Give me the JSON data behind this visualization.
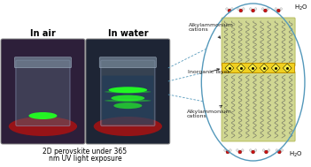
{
  "figsize": [
    3.51,
    1.89
  ],
  "dpi": 100,
  "label_air": "In air",
  "label_water": "In water",
  "caption_line1": "2D perovskite under 365",
  "caption_line2": "nm UV light exposure",
  "h2o_top": "H₂O",
  "h2o_bottom": "H₂O",
  "ann_top": "Alkylammonium\ncations",
  "ann_mid": "Inorganic layer",
  "ann_bot": "Alkylammonium\ncations",
  "photo1_bg": "#2d1f3a",
  "photo2_bg": "#1e2535",
  "photo_border": "#888888",
  "red_surface": "#aa1111",
  "green_fluor": "#22ff22",
  "jar_color": "#667788",
  "organic_color": "#c8d080",
  "organic_border": "#aab040",
  "inorganic_bg": "#f0d020",
  "inorganic_border": "#c09000",
  "ellipse_color": "#5599bb",
  "water_O": "#cc1111",
  "water_H": "#e8e8e8",
  "water_bond": "#888888",
  "ann_color": "#222222",
  "dashed_color": "#5599bb",
  "chain_color": "#555555",
  "oct_fill": "#ffee44",
  "oct_edge": "#222200",
  "oct_center": "#111100"
}
